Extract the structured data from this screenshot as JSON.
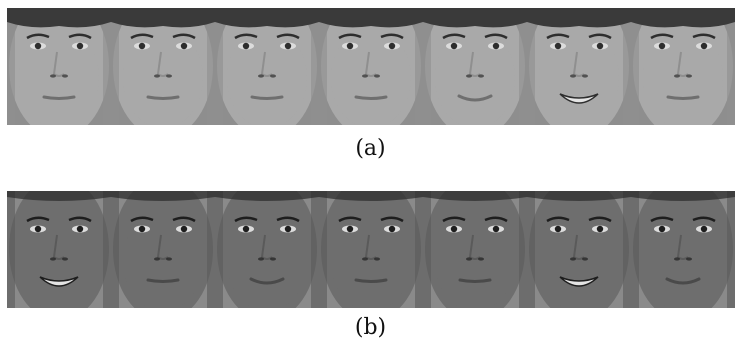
{
  "figure": {
    "panels": [
      {
        "caption": "(a)",
        "faces": [
          {
            "expression": "neutral"
          },
          {
            "expression": "neutral"
          },
          {
            "expression": "neutral"
          },
          {
            "expression": "neutral"
          },
          {
            "expression": "slight-smile"
          },
          {
            "expression": "smile"
          },
          {
            "expression": "neutral"
          }
        ]
      },
      {
        "caption": "(b)",
        "faces": [
          {
            "expression": "smile"
          },
          {
            "expression": "neutral"
          },
          {
            "expression": "slight-smile"
          },
          {
            "expression": "neutral"
          },
          {
            "expression": "neutral"
          },
          {
            "expression": "smile"
          },
          {
            "expression": "slight-smile"
          }
        ]
      }
    ]
  }
}
